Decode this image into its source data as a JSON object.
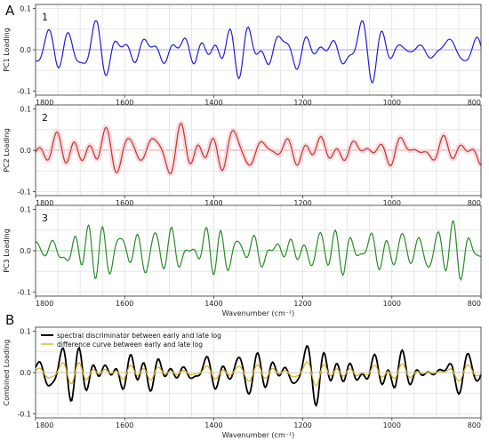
{
  "panel_labels": {
    "a": "A",
    "b": "B"
  },
  "chart_data": [
    {
      "type": "line",
      "panel": "A",
      "number": "1",
      "ylabel": "PC1 Loading",
      "xlabel": "",
      "xlim": [
        1800,
        800
      ],
      "ylim": [
        -0.11,
        0.11
      ],
      "x_ticks": [
        "1800",
        "1600",
        "1400",
        "1200",
        "1000",
        "800"
      ],
      "y_ticks": [
        "0.1",
        "0.0",
        "-0.1"
      ],
      "y_tick_values": [
        0.1,
        0.0,
        -0.1
      ],
      "grid": true,
      "color": "#1f1fd6",
      "zero_line_color": "#8c8cf0",
      "band": false,
      "seed": 17,
      "amplitude": 0.055,
      "series": [
        {
          "wavenumber_range": [
            1800,
            800
          ],
          "min": -0.085,
          "max": 0.07
        }
      ]
    },
    {
      "type": "line",
      "panel": "A",
      "number": "2",
      "ylabel": "PC2 Loading",
      "xlabel": "",
      "xlim": [
        1800,
        800
      ],
      "ylim": [
        -0.11,
        0.11
      ],
      "x_ticks": [
        "1800",
        "1600",
        "1400",
        "1200",
        "1000",
        "800"
      ],
      "y_ticks": [
        "0.1",
        "0.0",
        "-0.1"
      ],
      "y_tick_values": [
        0.1,
        0.0,
        -0.1
      ],
      "grid": true,
      "color": "#c0392b",
      "zero_line_color": "#e08a80",
      "band": true,
      "band_color": "#f6d3dc",
      "seed": 53,
      "amplitude": 0.045,
      "series": [
        {
          "wavenumber_range": [
            1800,
            800
          ],
          "min": -0.07,
          "max": 0.07
        }
      ]
    },
    {
      "type": "line",
      "panel": "A",
      "number": "3",
      "ylabel": "PC3 Loading",
      "xlabel": "Wavenumber (cm⁻¹)",
      "xlim": [
        1800,
        800
      ],
      "ylim": [
        -0.11,
        0.11
      ],
      "x_ticks": [
        "1800",
        "1600",
        "1400",
        "1200",
        "1000",
        "800"
      ],
      "y_ticks": [
        "0.1",
        "0.0",
        "-0.1"
      ],
      "y_tick_values": [
        0.1,
        0.0,
        -0.1
      ],
      "grid": true,
      "color": "#2a8a2a",
      "zero_line_color": "#88c888",
      "band": false,
      "seed": 91,
      "amplitude": 0.05,
      "series": [
        {
          "wavenumber_range": [
            1800,
            800
          ],
          "min": -0.1,
          "max": 0.1
        }
      ]
    },
    {
      "type": "line",
      "panel": "B",
      "number": "",
      "ylabel": "Combined Loading",
      "xlabel": "Wavenumber (cm⁻¹)",
      "xlim": [
        1800,
        800
      ],
      "ylim": [
        -0.11,
        0.11
      ],
      "x_ticks": [
        "1800",
        "1600",
        "1400",
        "1200",
        "1000",
        "800"
      ],
      "y_ticks": [
        "0.1",
        "0.0",
        "-0.1"
      ],
      "y_tick_values": [
        0.1,
        0.0,
        -0.1
      ],
      "grid": true,
      "zero_line_color": "#bbbbbb",
      "legend_position": "top-left",
      "series": [
        {
          "name": "spectral discriminator between early and late log",
          "color": "#000000",
          "seed": 131,
          "amplitude": 0.055,
          "min": -0.085,
          "max": 0.075
        },
        {
          "name": "difference curve between early and late log",
          "color": "#d9b21c",
          "seed": 131,
          "amplitude": 0.022,
          "min": -0.04,
          "max": 0.03
        }
      ]
    }
  ]
}
